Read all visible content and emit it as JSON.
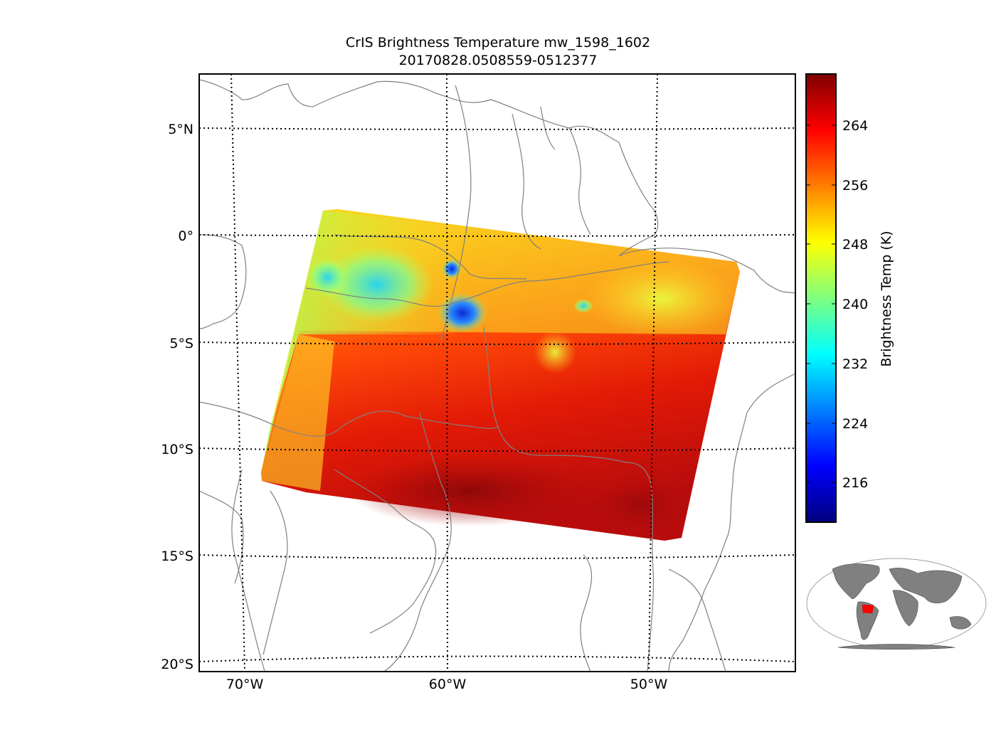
{
  "title": {
    "line1": "CrIS Brightness Temperature mw_1598_1602",
    "line2": "20170828.0508559-0512377"
  },
  "axes": {
    "lat_labels": [
      "5°N",
      "0°",
      "5°S",
      "10°S",
      "15°S",
      "20°S"
    ],
    "lon_labels": [
      "70°W",
      "60°W",
      "50°W"
    ]
  },
  "colorbar": {
    "label": "Brightness Temp (K)",
    "ticks": [
      "264",
      "256",
      "248",
      "240",
      "232",
      "224",
      "216"
    ],
    "colormap": "jet",
    "colors": [
      "#00007f",
      "#0000ff",
      "#007fff",
      "#00ffff",
      "#7fff7f",
      "#ffff00",
      "#ff7f00",
      "#ff0000",
      "#7f0000"
    ]
  },
  "inset": {
    "land_color": "#808080",
    "highlight_color": "#ff0000"
  }
}
